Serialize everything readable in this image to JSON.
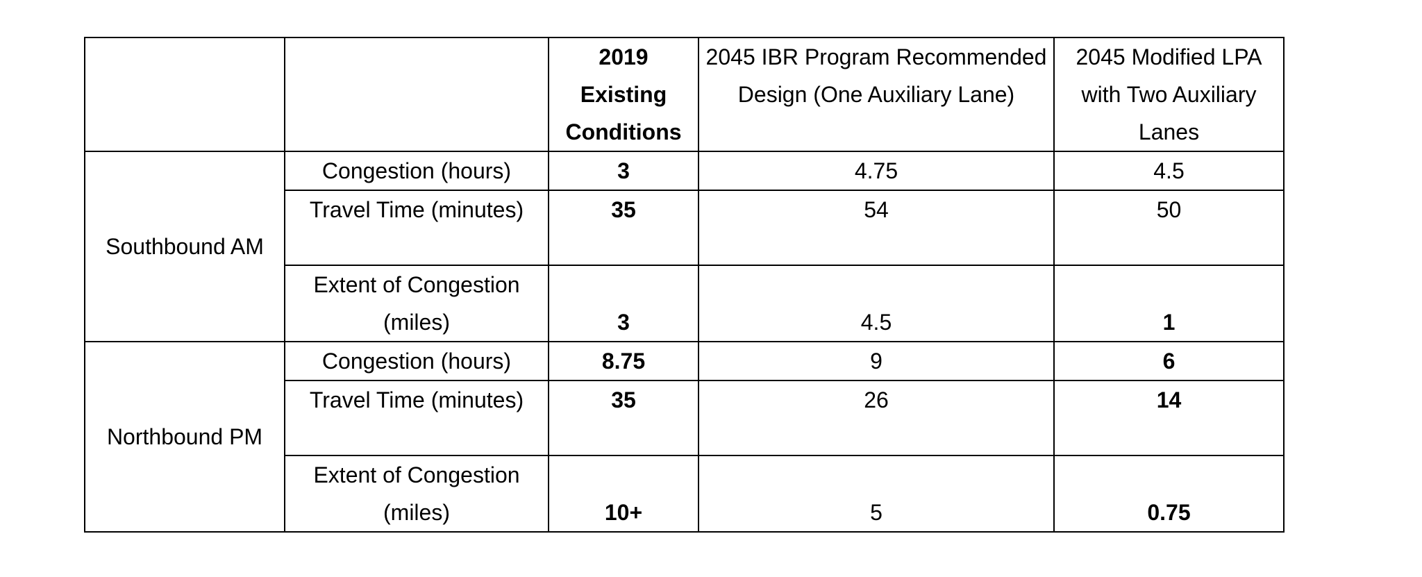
{
  "table": {
    "header": {
      "corner_1": "",
      "corner_2": "",
      "col_existing": "2019 Existing Conditions",
      "col_recommended": "2045 IBR Program Recommended Design (One Auxiliary Lane)",
      "col_modified": "2045 Modified LPA with Two Auxiliary Lanes"
    },
    "groups": [
      {
        "label": "Southbound AM",
        "rows": [
          {
            "metric": "Congestion (hours)",
            "existing": "3",
            "recommended": "4.75",
            "modified": "4.5"
          },
          {
            "metric": "Travel Time (minutes)",
            "existing": "35",
            "recommended": "54",
            "modified": "50"
          },
          {
            "metric": "Extent of Congestion (miles)",
            "existing": "3",
            "recommended": "4.5",
            "modified": "1"
          }
        ]
      },
      {
        "label": "Northbound PM",
        "rows": [
          {
            "metric": "Congestion (hours)",
            "existing": "8.75",
            "recommended": "9",
            "modified": "6"
          },
          {
            "metric": "Travel Time (minutes)",
            "existing": "35",
            "recommended": "26",
            "modified": "14"
          },
          {
            "metric": "Extent of Congestion (miles)",
            "existing": "10+",
            "recommended": "5",
            "modified": "0.75"
          }
        ]
      }
    ]
  }
}
